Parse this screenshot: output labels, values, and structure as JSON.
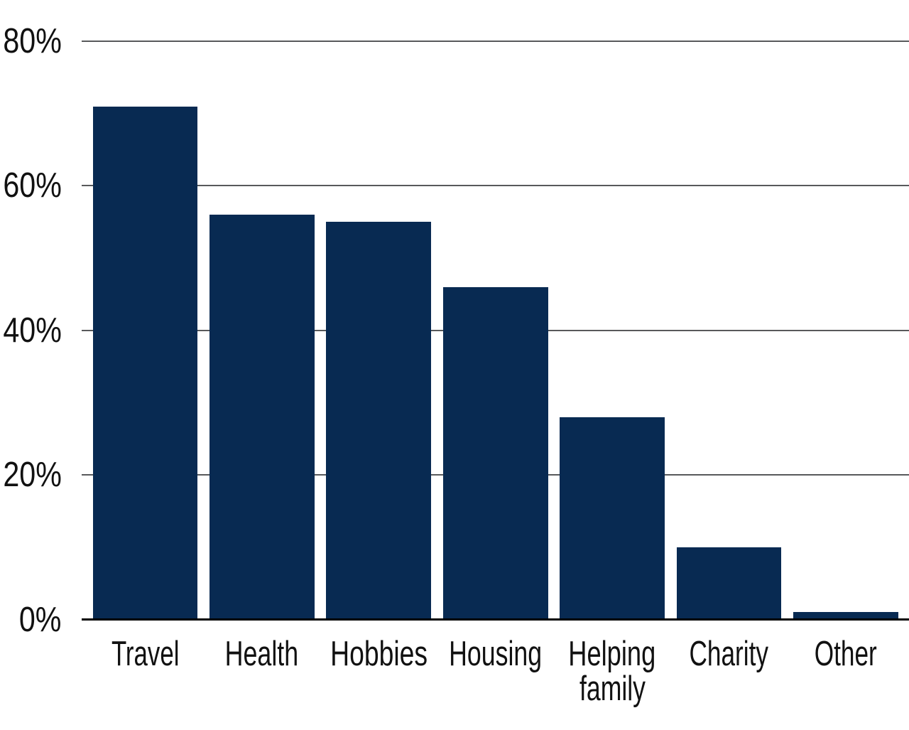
{
  "chart_data": {
    "type": "bar",
    "categories": [
      "Travel",
      "Health",
      "Hobbies",
      "Housing",
      "Helping\nfamily",
      "Charity",
      "Other"
    ],
    "values": [
      71,
      56,
      55,
      46,
      28,
      10,
      1
    ],
    "unit": "%",
    "yticks": [
      0,
      20,
      40,
      60,
      80
    ],
    "ytick_labels": [
      "0%",
      "20%",
      "40%",
      "60%",
      "80%"
    ],
    "ylim": [
      0,
      84
    ],
    "grid": "horizontal",
    "legend": "none",
    "colors": {
      "bar": "#082a52",
      "grid": "#58595b",
      "axis": "#000000",
      "text": "#111111",
      "background": "#ffffff"
    }
  }
}
